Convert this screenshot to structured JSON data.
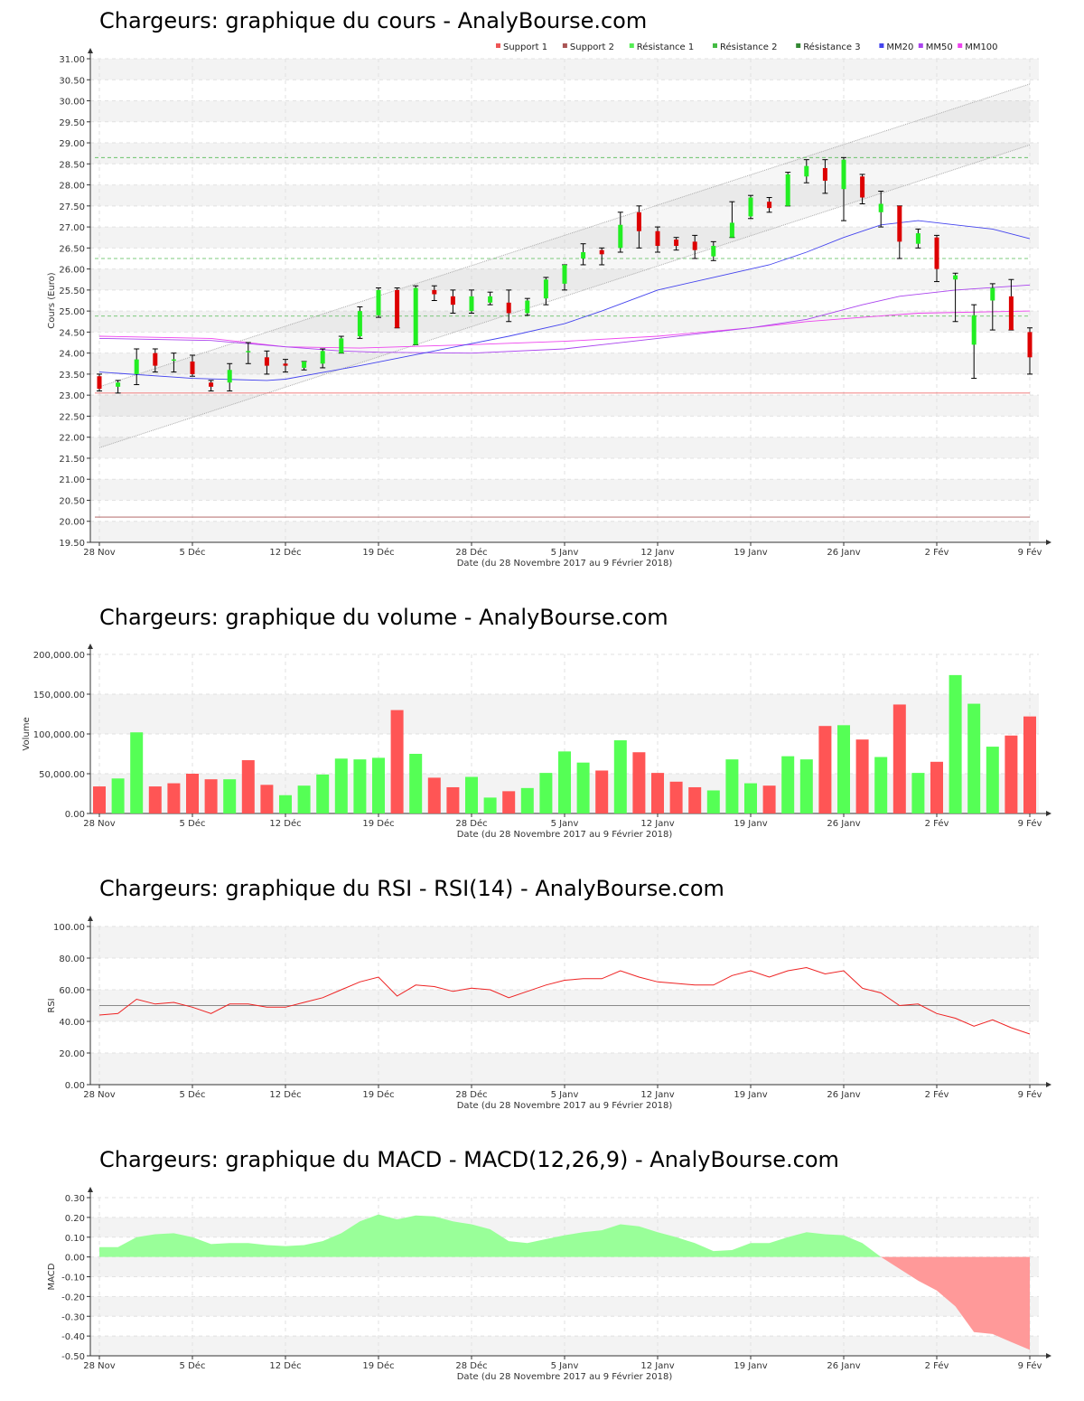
{
  "x_axis": {
    "label": "Date (du 28 Novembre 2017 au 9 Février 2018)",
    "ticks": [
      {
        "i": 0,
        "label": "28 Nov"
      },
      {
        "i": 5,
        "label": "5 Déc"
      },
      {
        "i": 10,
        "label": "12 Déc"
      },
      {
        "i": 15,
        "label": "19 Déc"
      },
      {
        "i": 20,
        "label": "28 Déc"
      },
      {
        "i": 25,
        "label": "5 Janv"
      },
      {
        "i": 30,
        "label": "12 Janv"
      },
      {
        "i": 35,
        "label": "19 Janv"
      },
      {
        "i": 40,
        "label": "26 Janv"
      },
      {
        "i": 45,
        "label": "2 Fév"
      },
      {
        "i": 50,
        "label": "9 Fév"
      }
    ]
  },
  "colors": {
    "up": "#22ee22",
    "down": "#dd0000",
    "vol_up": "#55ff55",
    "vol_down": "#ff5555",
    "mm20": "#4444ee",
    "mm50": "#aa44ee",
    "mm100": "#ee44ee",
    "rsi": "#ee2222",
    "macd_pos": "#99ff99",
    "macd_neg": "#ff9999"
  },
  "chart_data": [
    {
      "type": "candlestick",
      "title": "Chargeurs: graphique du cours - AnalyBourse.com",
      "ylabel": "Cours (Euro)",
      "ylim": [
        19.5,
        31.0
      ],
      "yticks": [
        "19.50",
        "20.00",
        "20.50",
        "21.00",
        "21.50",
        "22.00",
        "22.50",
        "23.00",
        "23.50",
        "24.00",
        "24.50",
        "25.00",
        "25.50",
        "26.00",
        "26.50",
        "27.00",
        "27.50",
        "28.00",
        "28.50",
        "29.00",
        "29.50",
        "30.00",
        "30.50",
        "31.00"
      ],
      "legend": [
        "Support 1",
        "Support 2",
        "Résistance 1",
        "Résistance 2",
        "Résistance 3",
        "MM20",
        "MM50",
        "MM100"
      ],
      "legend_colors": [
        "#ee5555",
        "#aa5555",
        "#55ee55",
        "#44bb44",
        "#338833",
        "#4444ee",
        "#aa44ee",
        "#ee44ee"
      ],
      "support": [
        23.05,
        20.1
      ],
      "resistance": [
        24.88,
        26.25,
        28.65
      ],
      "trend_channel": {
        "lower": [
          [
            0,
            21.75
          ],
          [
            50,
            28.95
          ]
        ],
        "upper": [
          [
            0,
            23.2
          ],
          [
            50,
            30.4
          ]
        ]
      },
      "candles": [
        {
          "o": 23.45,
          "h": 23.5,
          "l": 23.1,
          "c": 23.15
        },
        {
          "o": 23.2,
          "h": 23.35,
          "l": 23.05,
          "c": 23.3
        },
        {
          "o": 23.5,
          "h": 24.1,
          "l": 23.25,
          "c": 23.85
        },
        {
          "o": 24.0,
          "h": 24.1,
          "l": 23.55,
          "c": 23.7
        },
        {
          "o": 23.85,
          "h": 24.0,
          "l": 23.55,
          "c": 23.85
        },
        {
          "o": 23.8,
          "h": 23.95,
          "l": 23.45,
          "c": 23.5
        },
        {
          "o": 23.3,
          "h": 23.35,
          "l": 23.1,
          "c": 23.2
        },
        {
          "o": 23.3,
          "h": 23.75,
          "l": 23.1,
          "c": 23.6
        },
        {
          "o": 24.05,
          "h": 24.25,
          "l": 23.75,
          "c": 24.05
        },
        {
          "o": 23.9,
          "h": 24.05,
          "l": 23.5,
          "c": 23.7
        },
        {
          "o": 23.75,
          "h": 23.85,
          "l": 23.55,
          "c": 23.7
        },
        {
          "o": 23.65,
          "h": 23.8,
          "l": 23.6,
          "c": 23.8
        },
        {
          "o": 23.75,
          "h": 24.1,
          "l": 23.65,
          "c": 24.05
        },
        {
          "o": 24.0,
          "h": 24.4,
          "l": 24.0,
          "c": 24.35
        },
        {
          "o": 24.4,
          "h": 25.1,
          "l": 24.35,
          "c": 25.0
        },
        {
          "o": 24.9,
          "h": 25.55,
          "l": 24.85,
          "c": 25.5
        },
        {
          "o": 25.5,
          "h": 25.55,
          "l": 24.6,
          "c": 24.6
        },
        {
          "o": 24.2,
          "h": 25.6,
          "l": 24.2,
          "c": 25.55
        },
        {
          "o": 25.5,
          "h": 25.6,
          "l": 25.25,
          "c": 25.4
        },
        {
          "o": 25.35,
          "h": 25.5,
          "l": 24.95,
          "c": 25.15
        },
        {
          "o": 25.0,
          "h": 25.5,
          "l": 24.95,
          "c": 25.35
        },
        {
          "o": 25.2,
          "h": 25.45,
          "l": 25.15,
          "c": 25.35
        },
        {
          "o": 25.2,
          "h": 25.5,
          "l": 24.75,
          "c": 24.95
        },
        {
          "o": 24.95,
          "h": 25.3,
          "l": 24.9,
          "c": 25.25
        },
        {
          "o": 25.3,
          "h": 25.8,
          "l": 25.15,
          "c": 25.75
        },
        {
          "o": 25.65,
          "h": 26.1,
          "l": 25.5,
          "c": 26.1
        },
        {
          "o": 26.25,
          "h": 26.6,
          "l": 26.1,
          "c": 26.4
        },
        {
          "o": 26.45,
          "h": 26.5,
          "l": 26.1,
          "c": 26.35
        },
        {
          "o": 26.5,
          "h": 27.35,
          "l": 26.4,
          "c": 27.05
        },
        {
          "o": 27.35,
          "h": 27.5,
          "l": 26.5,
          "c": 26.9
        },
        {
          "o": 26.9,
          "h": 27.0,
          "l": 26.4,
          "c": 26.55
        },
        {
          "o": 26.7,
          "h": 26.75,
          "l": 26.45,
          "c": 26.55
        },
        {
          "o": 26.65,
          "h": 26.8,
          "l": 26.25,
          "c": 26.45
        },
        {
          "o": 26.3,
          "h": 26.65,
          "l": 26.2,
          "c": 26.55
        },
        {
          "o": 26.75,
          "h": 27.6,
          "l": 26.75,
          "c": 27.1
        },
        {
          "o": 27.25,
          "h": 27.75,
          "l": 27.2,
          "c": 27.7
        },
        {
          "o": 27.6,
          "h": 27.7,
          "l": 27.35,
          "c": 27.45
        },
        {
          "o": 27.5,
          "h": 28.3,
          "l": 27.5,
          "c": 28.25
        },
        {
          "o": 28.2,
          "h": 28.6,
          "l": 28.05,
          "c": 28.45
        },
        {
          "o": 28.4,
          "h": 28.6,
          "l": 27.8,
          "c": 28.1
        },
        {
          "o": 27.9,
          "h": 28.65,
          "l": 27.15,
          "c": 28.6
        },
        {
          "o": 28.2,
          "h": 28.25,
          "l": 27.55,
          "c": 27.7
        },
        {
          "o": 27.35,
          "h": 27.85,
          "l": 27.0,
          "c": 27.55
        },
        {
          "o": 27.5,
          "h": 27.5,
          "l": 26.25,
          "c": 26.65
        },
        {
          "o": 26.6,
          "h": 26.95,
          "l": 26.5,
          "c": 26.85
        },
        {
          "o": 26.75,
          "h": 26.8,
          "l": 25.7,
          "c": 26.0
        },
        {
          "o": 25.75,
          "h": 25.9,
          "l": 24.75,
          "c": 25.85
        },
        {
          "o": 24.2,
          "h": 25.15,
          "l": 23.4,
          "c": 24.9
        },
        {
          "o": 25.25,
          "h": 25.65,
          "l": 24.55,
          "c": 25.55
        },
        {
          "o": 25.35,
          "h": 25.75,
          "l": 24.55,
          "c": 24.55
        },
        {
          "o": 24.5,
          "h": 24.6,
          "l": 23.5,
          "c": 23.9
        }
      ],
      "mm20": [
        [
          0,
          23.55
        ],
        [
          5,
          23.4
        ],
        [
          9,
          23.35
        ],
        [
          10,
          23.38
        ],
        [
          14,
          23.7
        ],
        [
          18,
          24.05
        ],
        [
          22,
          24.4
        ],
        [
          25,
          24.7
        ],
        [
          27,
          25.0
        ],
        [
          30,
          25.5
        ],
        [
          33,
          25.8
        ],
        [
          36,
          26.1
        ],
        [
          38,
          26.4
        ],
        [
          40,
          26.75
        ],
        [
          42,
          27.05
        ],
        [
          44,
          27.15
        ],
        [
          46,
          27.05
        ],
        [
          48,
          26.95
        ],
        [
          50,
          26.72
        ]
      ],
      "mm50": [
        [
          0,
          24.35
        ],
        [
          6,
          24.3
        ],
        [
          10,
          24.15
        ],
        [
          13,
          24.05
        ],
        [
          15,
          24.02
        ],
        [
          20,
          24.0
        ],
        [
          25,
          24.1
        ],
        [
          30,
          24.35
        ],
        [
          35,
          24.6
        ],
        [
          38,
          24.8
        ],
        [
          41,
          25.15
        ],
        [
          43,
          25.35
        ],
        [
          46,
          25.5
        ],
        [
          50,
          25.62
        ]
      ],
      "mm100": [
        [
          0,
          24.4
        ],
        [
          6,
          24.35
        ],
        [
          10,
          24.15
        ],
        [
          14,
          24.12
        ],
        [
          20,
          24.2
        ],
        [
          25,
          24.28
        ],
        [
          30,
          24.4
        ],
        [
          35,
          24.6
        ],
        [
          38,
          24.75
        ],
        [
          41,
          24.85
        ],
        [
          44,
          24.95
        ],
        [
          50,
          25.0
        ]
      ]
    },
    {
      "type": "bar",
      "title": "Chargeurs: graphique du volume - AnalyBourse.com",
      "ylabel": "Volume",
      "ylim": [
        0,
        200000
      ],
      "yticks": [
        "0.00",
        "50,000.00",
        "100,000.00",
        "150,000.00",
        "200,000.00"
      ],
      "values": [
        34000,
        44000,
        102000,
        34000,
        38000,
        50000,
        43000,
        43000,
        67000,
        36000,
        23000,
        35000,
        49000,
        69000,
        68000,
        70000,
        130000,
        75000,
        45000,
        33000,
        46000,
        20000,
        28000,
        32000,
        51000,
        78000,
        64000,
        54000,
        92000,
        77000,
        51000,
        40000,
        33000,
        29000,
        68000,
        38000,
        35000,
        72000,
        68000,
        110000,
        111000,
        93000,
        71000,
        137000,
        51000,
        65000,
        174000,
        138000,
        84000,
        98000,
        122000
      ],
      "up": [
        false,
        true,
        true,
        false,
        false,
        false,
        false,
        true,
        false,
        false,
        true,
        true,
        true,
        true,
        true,
        true,
        false,
        true,
        false,
        false,
        true,
        true,
        false,
        true,
        true,
        true,
        true,
        false,
        true,
        false,
        false,
        false,
        false,
        true,
        true,
        true,
        false,
        true,
        true,
        false,
        true,
        false,
        true,
        false,
        true,
        false,
        true,
        true,
        true,
        false,
        false
      ]
    },
    {
      "type": "line",
      "title": "Chargeurs: graphique du RSI - RSI(14) - AnalyBourse.com",
      "ylabel": "RSI",
      "ylim": [
        0,
        100
      ],
      "yticks": [
        "0.00",
        "20.00",
        "40.00",
        "60.00",
        "80.00",
        "100.00"
      ],
      "reference": 50,
      "values": [
        [
          0,
          44
        ],
        [
          1,
          45
        ],
        [
          2,
          54
        ],
        [
          3,
          51
        ],
        [
          4,
          52
        ],
        [
          5,
          49
        ],
        [
          6,
          45
        ],
        [
          7,
          51
        ],
        [
          8,
          51
        ],
        [
          9,
          49
        ],
        [
          10,
          49
        ],
        [
          11,
          52
        ],
        [
          12,
          55
        ],
        [
          13,
          60
        ],
        [
          14,
          65
        ],
        [
          15,
          68
        ],
        [
          16,
          56
        ],
        [
          17,
          63
        ],
        [
          18,
          62
        ],
        [
          19,
          59
        ],
        [
          20,
          61
        ],
        [
          21,
          60
        ],
        [
          22,
          55
        ],
        [
          23,
          59
        ],
        [
          24,
          63
        ],
        [
          25,
          66
        ],
        [
          26,
          67
        ],
        [
          27,
          67
        ],
        [
          28,
          72
        ],
        [
          29,
          68
        ],
        [
          30,
          65
        ],
        [
          31,
          64
        ],
        [
          32,
          63
        ],
        [
          33,
          63
        ],
        [
          34,
          69
        ],
        [
          35,
          72
        ],
        [
          36,
          68
        ],
        [
          37,
          72
        ],
        [
          38,
          74
        ],
        [
          39,
          70
        ],
        [
          40,
          72
        ],
        [
          41,
          61
        ],
        [
          42,
          58
        ],
        [
          43,
          50
        ],
        [
          44,
          51
        ],
        [
          45,
          45
        ],
        [
          46,
          42
        ],
        [
          47,
          37
        ],
        [
          48,
          41
        ],
        [
          49,
          36
        ],
        [
          50,
          32
        ]
      ]
    },
    {
      "type": "area",
      "title": "Chargeurs: graphique du MACD - MACD(12,26,9) - AnalyBourse.com",
      "ylabel": "MACD",
      "ylim": [
        -0.5,
        0.3
      ],
      "yticks": [
        "-0.50",
        "-0.40",
        "-0.30",
        "-0.20",
        "-0.10",
        "0.00",
        "0.10",
        "0.20",
        "0.30"
      ],
      "values": [
        [
          0,
          0.05
        ],
        [
          1,
          0.05
        ],
        [
          2,
          0.1
        ],
        [
          3,
          0.115
        ],
        [
          4,
          0.12
        ],
        [
          5,
          0.1
        ],
        [
          6,
          0.065
        ],
        [
          7,
          0.07
        ],
        [
          8,
          0.07
        ],
        [
          9,
          0.06
        ],
        [
          10,
          0.055
        ],
        [
          11,
          0.06
        ],
        [
          12,
          0.08
        ],
        [
          13,
          0.12
        ],
        [
          14,
          0.18
        ],
        [
          15,
          0.215
        ],
        [
          16,
          0.19
        ],
        [
          17,
          0.21
        ],
        [
          18,
          0.205
        ],
        [
          19,
          0.18
        ],
        [
          20,
          0.165
        ],
        [
          21,
          0.14
        ],
        [
          22,
          0.08
        ],
        [
          23,
          0.07
        ],
        [
          24,
          0.09
        ],
        [
          25,
          0.11
        ],
        [
          26,
          0.125
        ],
        [
          27,
          0.135
        ],
        [
          28,
          0.165
        ],
        [
          29,
          0.155
        ],
        [
          30,
          0.125
        ],
        [
          31,
          0.1
        ],
        [
          32,
          0.07
        ],
        [
          33,
          0.03
        ],
        [
          34,
          0.035
        ],
        [
          35,
          0.07
        ],
        [
          36,
          0.07
        ],
        [
          37,
          0.1
        ],
        [
          38,
          0.125
        ],
        [
          39,
          0.115
        ],
        [
          40,
          0.11
        ],
        [
          41,
          0.07
        ],
        [
          42,
          0.0
        ],
        [
          43,
          -0.06
        ],
        [
          44,
          -0.12
        ],
        [
          45,
          -0.17
        ],
        [
          46,
          -0.25
        ],
        [
          47,
          -0.38
        ],
        [
          48,
          -0.39
        ],
        [
          49,
          -0.43
        ],
        [
          50,
          -0.47
        ]
      ]
    }
  ]
}
